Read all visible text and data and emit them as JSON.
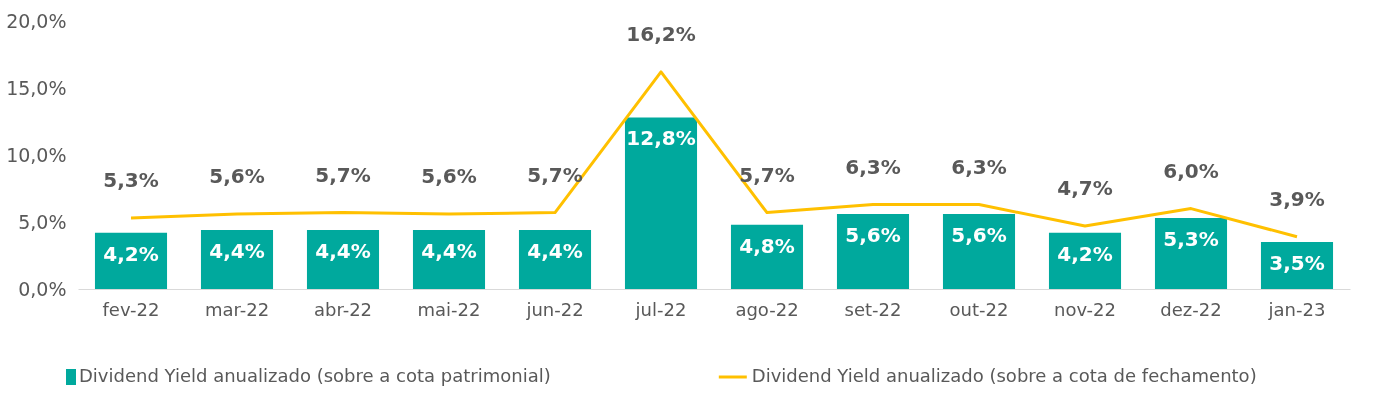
{
  "chart_data": {
    "type": "bar",
    "categories": [
      "fev-22",
      "mar-22",
      "abr-22",
      "mai-22",
      "jun-22",
      "jul-22",
      "ago-22",
      "set-22",
      "out-22",
      "nov-22",
      "dez-22",
      "jan-23"
    ],
    "series": [
      {
        "name": "Dividend Yield anualizado (sobre a cota patrimonial)",
        "color": "#00a99d",
        "values": [
          4.2,
          4.4,
          4.4,
          4.4,
          4.4,
          12.8,
          4.8,
          5.6,
          5.6,
          4.2,
          5.3,
          3.5
        ],
        "value_labels": [
          "4,2%",
          "4,4%",
          "4,4%",
          "4,4%",
          "4,4%",
          "12,8%",
          "4,8%",
          "5,6%",
          "5,6%",
          "4,2%",
          "5,3%",
          "3,5%"
        ]
      },
      {
        "name": "Dividend Yield anualizado (sobre a cota de fechamento)",
        "type": "line",
        "color": "#ffc000",
        "values": [
          5.3,
          5.6,
          5.7,
          5.6,
          5.7,
          16.2,
          5.7,
          6.3,
          6.3,
          4.7,
          6.0,
          3.9
        ],
        "value_labels": [
          "5,3%",
          "5,6%",
          "5,7%",
          "5,6%",
          "5,7%",
          "16,2%",
          "5,7%",
          "6,3%",
          "6,3%",
          "4,7%",
          "6,0%",
          "3,9%"
        ]
      }
    ],
    "ylim": [
      0,
      20
    ],
    "yticks": [
      {
        "value": 0,
        "label": "0,0%"
      },
      {
        "value": 5,
        "label": "5,0%"
      },
      {
        "value": 10,
        "label": "10,0%"
      },
      {
        "value": 15,
        "label": "15,0%"
      },
      {
        "value": 20,
        "label": "20,0%"
      }
    ],
    "grid": false,
    "legend": "bottom",
    "marker": "none"
  }
}
